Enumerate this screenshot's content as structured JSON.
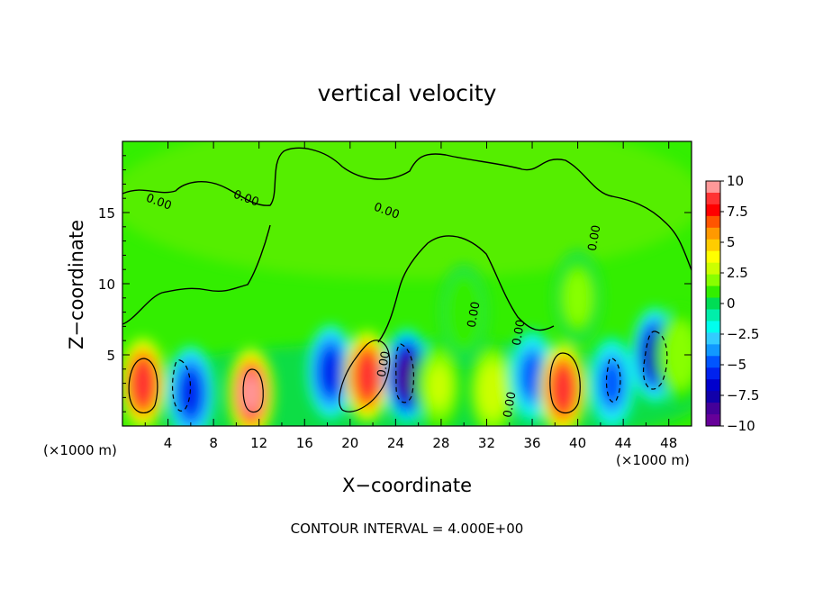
{
  "chart_data": {
    "type": "heatmap",
    "title": "vertical velocity",
    "xlabel": "X−coordinate",
    "ylabel": "Z−coordinate",
    "x_unit": "(×1000 m)",
    "z_unit": "(×1000 m)",
    "xlim": [
      0,
      50
    ],
    "zlim": [
      0,
      20
    ],
    "x_ticks": [
      4,
      8,
      12,
      16,
      20,
      24,
      28,
      32,
      36,
      40,
      44,
      48
    ],
    "x_tick_labels": [
      "4",
      "8",
      "12",
      "16",
      "20",
      "24",
      "28",
      "32",
      "36",
      "40",
      "44",
      "48"
    ],
    "z_ticks": [
      5,
      10,
      15
    ],
    "z_tick_labels": [
      "5",
      "10",
      "15"
    ],
    "contour_interval_text": "CONTOUR INTERVAL = 4.000E+00",
    "contour_labels": [
      "0.00",
      "0.00",
      "0.00",
      "0.00",
      "0.00",
      "0.00",
      "0.00",
      "0.00"
    ],
    "colorbar": {
      "range": [
        -10,
        10
      ],
      "tick_labels": [
        "10",
        "7.5",
        "5",
        "2.5",
        "0",
        "−2.5",
        "−5",
        "−7.5",
        "−10"
      ],
      "colors": [
        "#ff9999",
        "#ff3333",
        "#ff0000",
        "#ff5500",
        "#ff9900",
        "#ffcc00",
        "#ffff00",
        "#ccff00",
        "#88ff00",
        "#33ee00",
        "#00dd55",
        "#00eeaa",
        "#00ffee",
        "#33ccff",
        "#1199ff",
        "#0055ff",
        "#0022ee",
        "#0000cc",
        "#1100aa",
        "#440099",
        "#660099"
      ]
    },
    "features": [
      {
        "kind": "updraft",
        "x": 1.8,
        "z": 3.0,
        "peak": 9
      },
      {
        "kind": "downdraft",
        "x": 6.0,
        "z": 2.3,
        "peak": -6
      },
      {
        "kind": "updraft",
        "x": 11.3,
        "z": 2.3,
        "peak": 10
      },
      {
        "kind": "downdraft",
        "x": 18.3,
        "z": 3.8,
        "peak": -6
      },
      {
        "kind": "updraft",
        "x": 21.5,
        "z": 3.5,
        "peak": 9
      },
      {
        "kind": "downdraft",
        "x": 25.0,
        "z": 3.5,
        "peak": -9
      },
      {
        "kind": "updraft",
        "x": 27.8,
        "z": 2.8,
        "peak": 3
      },
      {
        "kind": "updraft",
        "x": 32.5,
        "z": 2.5,
        "peak": 3.5
      },
      {
        "kind": "downdraft",
        "x": 36.0,
        "z": 3.5,
        "peak": -5
      },
      {
        "kind": "updraft",
        "x": 38.7,
        "z": 2.6,
        "peak": 9
      },
      {
        "kind": "downdraft",
        "x": 43.0,
        "z": 3.0,
        "peak": -5
      },
      {
        "kind": "downdraft",
        "x": 46.8,
        "z": 5.0,
        "peak": -7.5
      },
      {
        "kind": "updraft",
        "x": 40.0,
        "z": 9.0,
        "peak": 2
      },
      {
        "kind": "updraft",
        "x": 30.0,
        "z": 8.0,
        "peak": 1.5
      },
      {
        "kind": "updraft",
        "x": 49.0,
        "z": 5.0,
        "peak": 2.5
      }
    ]
  }
}
